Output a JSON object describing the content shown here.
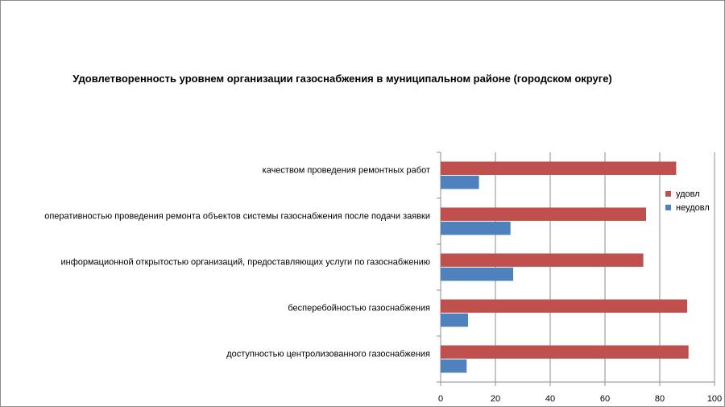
{
  "chart_data": {
    "type": "bar",
    "orientation": "horizontal",
    "title": "Удовлетворенность уровнем организации газоснабжения в муниципальном районе (городском округе)",
    "categories": [
      "качеством проведения ремонтных работ",
      "оперативностью проведения ремонта объектов системы газоснабжения после подачи заявки",
      "информационной открытостью организаций, предоставляющих услуги по газоснабжению",
      "бесперебойностью газоснабжения",
      "доступностью центролизованного газоснабжения"
    ],
    "series": [
      {
        "name": "удовл",
        "color": "#c0504d",
        "values": [
          86,
          75,
          74,
          90,
          90.5
        ]
      },
      {
        "name": "неудовл",
        "color": "#4f81bd",
        "values": [
          14,
          25.5,
          26.5,
          10,
          9.5
        ]
      }
    ],
    "xlim": [
      0,
      100
    ],
    "xticks": [
      0,
      20,
      40,
      60,
      80,
      100
    ],
    "grid": true,
    "legend_position": "right"
  }
}
